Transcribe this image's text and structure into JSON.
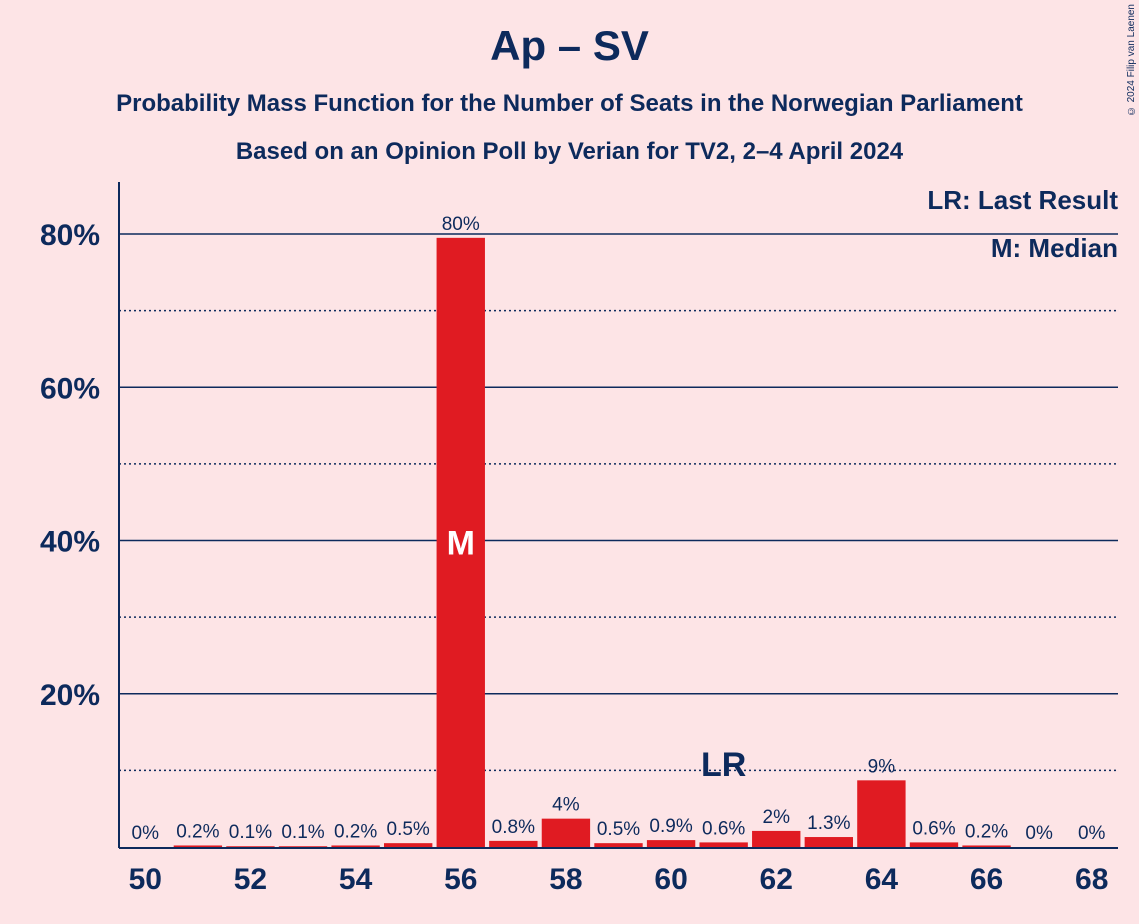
{
  "title": "Ap – SV",
  "subtitle1": "Probability Mass Function for the Number of Seats in the Norwegian Parliament",
  "subtitle2": "Based on an Opinion Poll by Verian for TV2, 2–4 April 2024",
  "copyright": "© 2024 Filip van Laenen",
  "legend": {
    "lr": "LR: Last Result",
    "m": "M: Median"
  },
  "colors": {
    "bar": "#e01b22",
    "text": "#0d2a5c",
    "background": "#fde4e6"
  },
  "chart_data": {
    "type": "bar",
    "x": [
      50,
      51,
      52,
      53,
      54,
      55,
      56,
      57,
      58,
      59,
      60,
      61,
      62,
      63,
      64,
      65,
      66,
      67,
      68
    ],
    "values": [
      0,
      0.2,
      0.1,
      0.1,
      0.2,
      0.5,
      79.5,
      0.8,
      3.7,
      0.5,
      0.9,
      0.6,
      2.1,
      1.3,
      8.7,
      0.6,
      0.2,
      0,
      0
    ],
    "data_labels": [
      "0%",
      "0.2%",
      "0.1%",
      "0.1%",
      "0.2%",
      "0.5%",
      "80%",
      "0.8%",
      "4%",
      "0.5%",
      "0.9%",
      "0.6%",
      "2%",
      "1.3%",
      "9%",
      "0.6%",
      "0.2%",
      "0%",
      "0%"
    ],
    "x_tick_labels": [
      "50",
      "52",
      "54",
      "56",
      "58",
      "60",
      "62",
      "64",
      "66",
      "68"
    ],
    "y_tick_labels": [
      "20%",
      "40%",
      "60%",
      "80%"
    ],
    "ylim": [
      0,
      87
    ],
    "median_seat": 56,
    "median_marker": "M",
    "last_result_seat": 61,
    "last_result_marker": "LR",
    "grid": {
      "solid": [
        20,
        40,
        60,
        80
      ],
      "dotted": [
        10,
        30,
        50,
        70
      ]
    },
    "legend_position": "top-right"
  }
}
